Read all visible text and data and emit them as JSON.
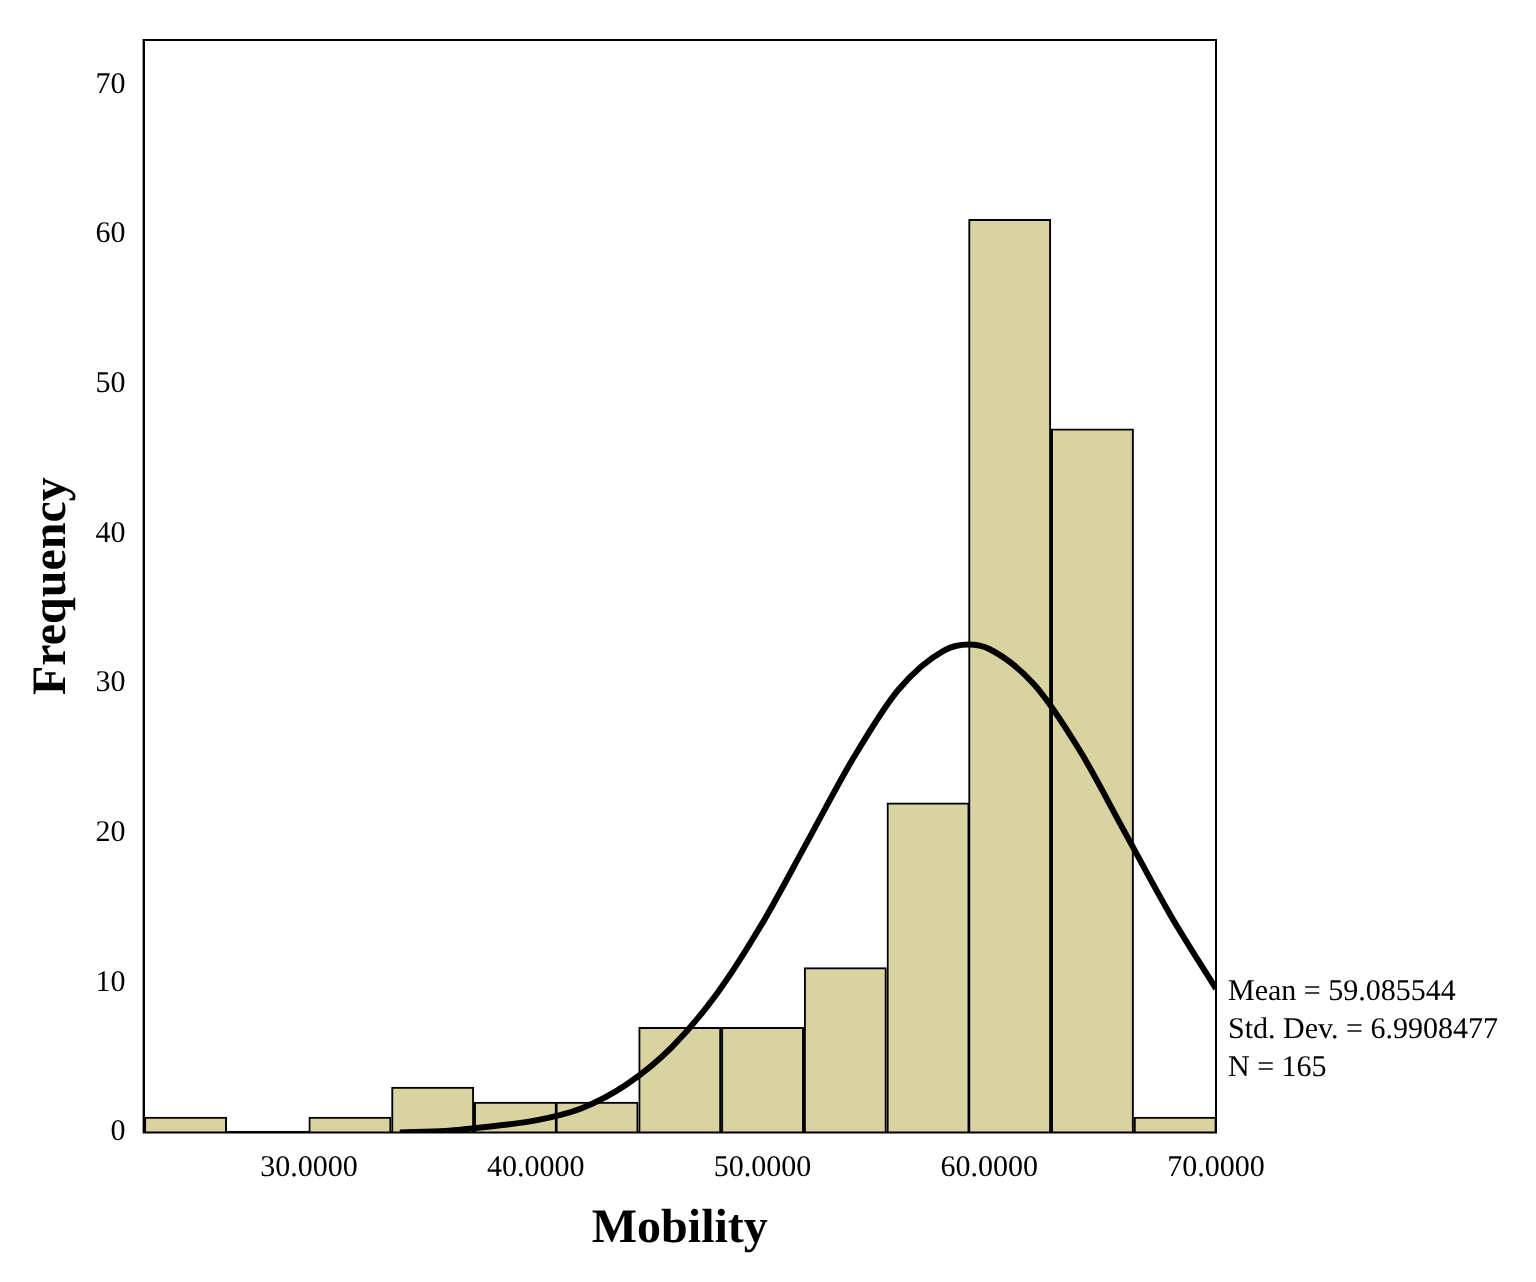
{
  "chart_data": {
    "type": "histogram",
    "xlabel": "Mobility",
    "ylabel": "Frequency",
    "bins": [
      22.7,
      26.4,
      30.0,
      33.6,
      37.3,
      40.9,
      44.5,
      48.2,
      51.8,
      55.5,
      59.1,
      62.7,
      66.4,
      70.0
    ],
    "values": [
      1,
      0,
      1,
      3,
      2,
      2,
      7,
      7,
      11,
      22,
      61,
      47,
      1
    ],
    "color": "#d8d3a0",
    "series": [
      {
        "type": "line",
        "color": "#000000",
        "x": [
          34,
          36,
          38,
          40,
          42,
          44,
          46,
          48,
          50,
          52,
          54,
          56,
          58,
          59.09,
          60,
          62,
          64,
          66,
          68,
          70
        ],
        "values": [
          0,
          0.1,
          0.4,
          0.8,
          1.6,
          3.2,
          5.7,
          9.3,
          14,
          19.5,
          25,
          29.6,
          32.2,
          32.6,
          32.3,
          29.9,
          25.5,
          20,
          14.5,
          9.6
        ]
      }
    ],
    "xlim": [
      22.7,
      70
    ],
    "xticks": [
      {
        "value": 30,
        "label": "30.0000"
      },
      {
        "value": 40,
        "label": "40.0000"
      },
      {
        "value": 50,
        "label": "50.0000"
      },
      {
        "value": 60,
        "label": "60.0000"
      },
      {
        "value": 70,
        "label": "70.0000"
      }
    ],
    "ylim": [
      0,
      73
    ],
    "yticks": [
      0,
      10,
      20,
      30,
      40,
      50,
      60,
      70
    ],
    "grid": false,
    "legend": false,
    "marker": "none",
    "line_style": "solid",
    "annotations": [
      "Mean = 59.085544",
      "Std. Dev. = 6.9908477",
      "N = 165"
    ]
  }
}
